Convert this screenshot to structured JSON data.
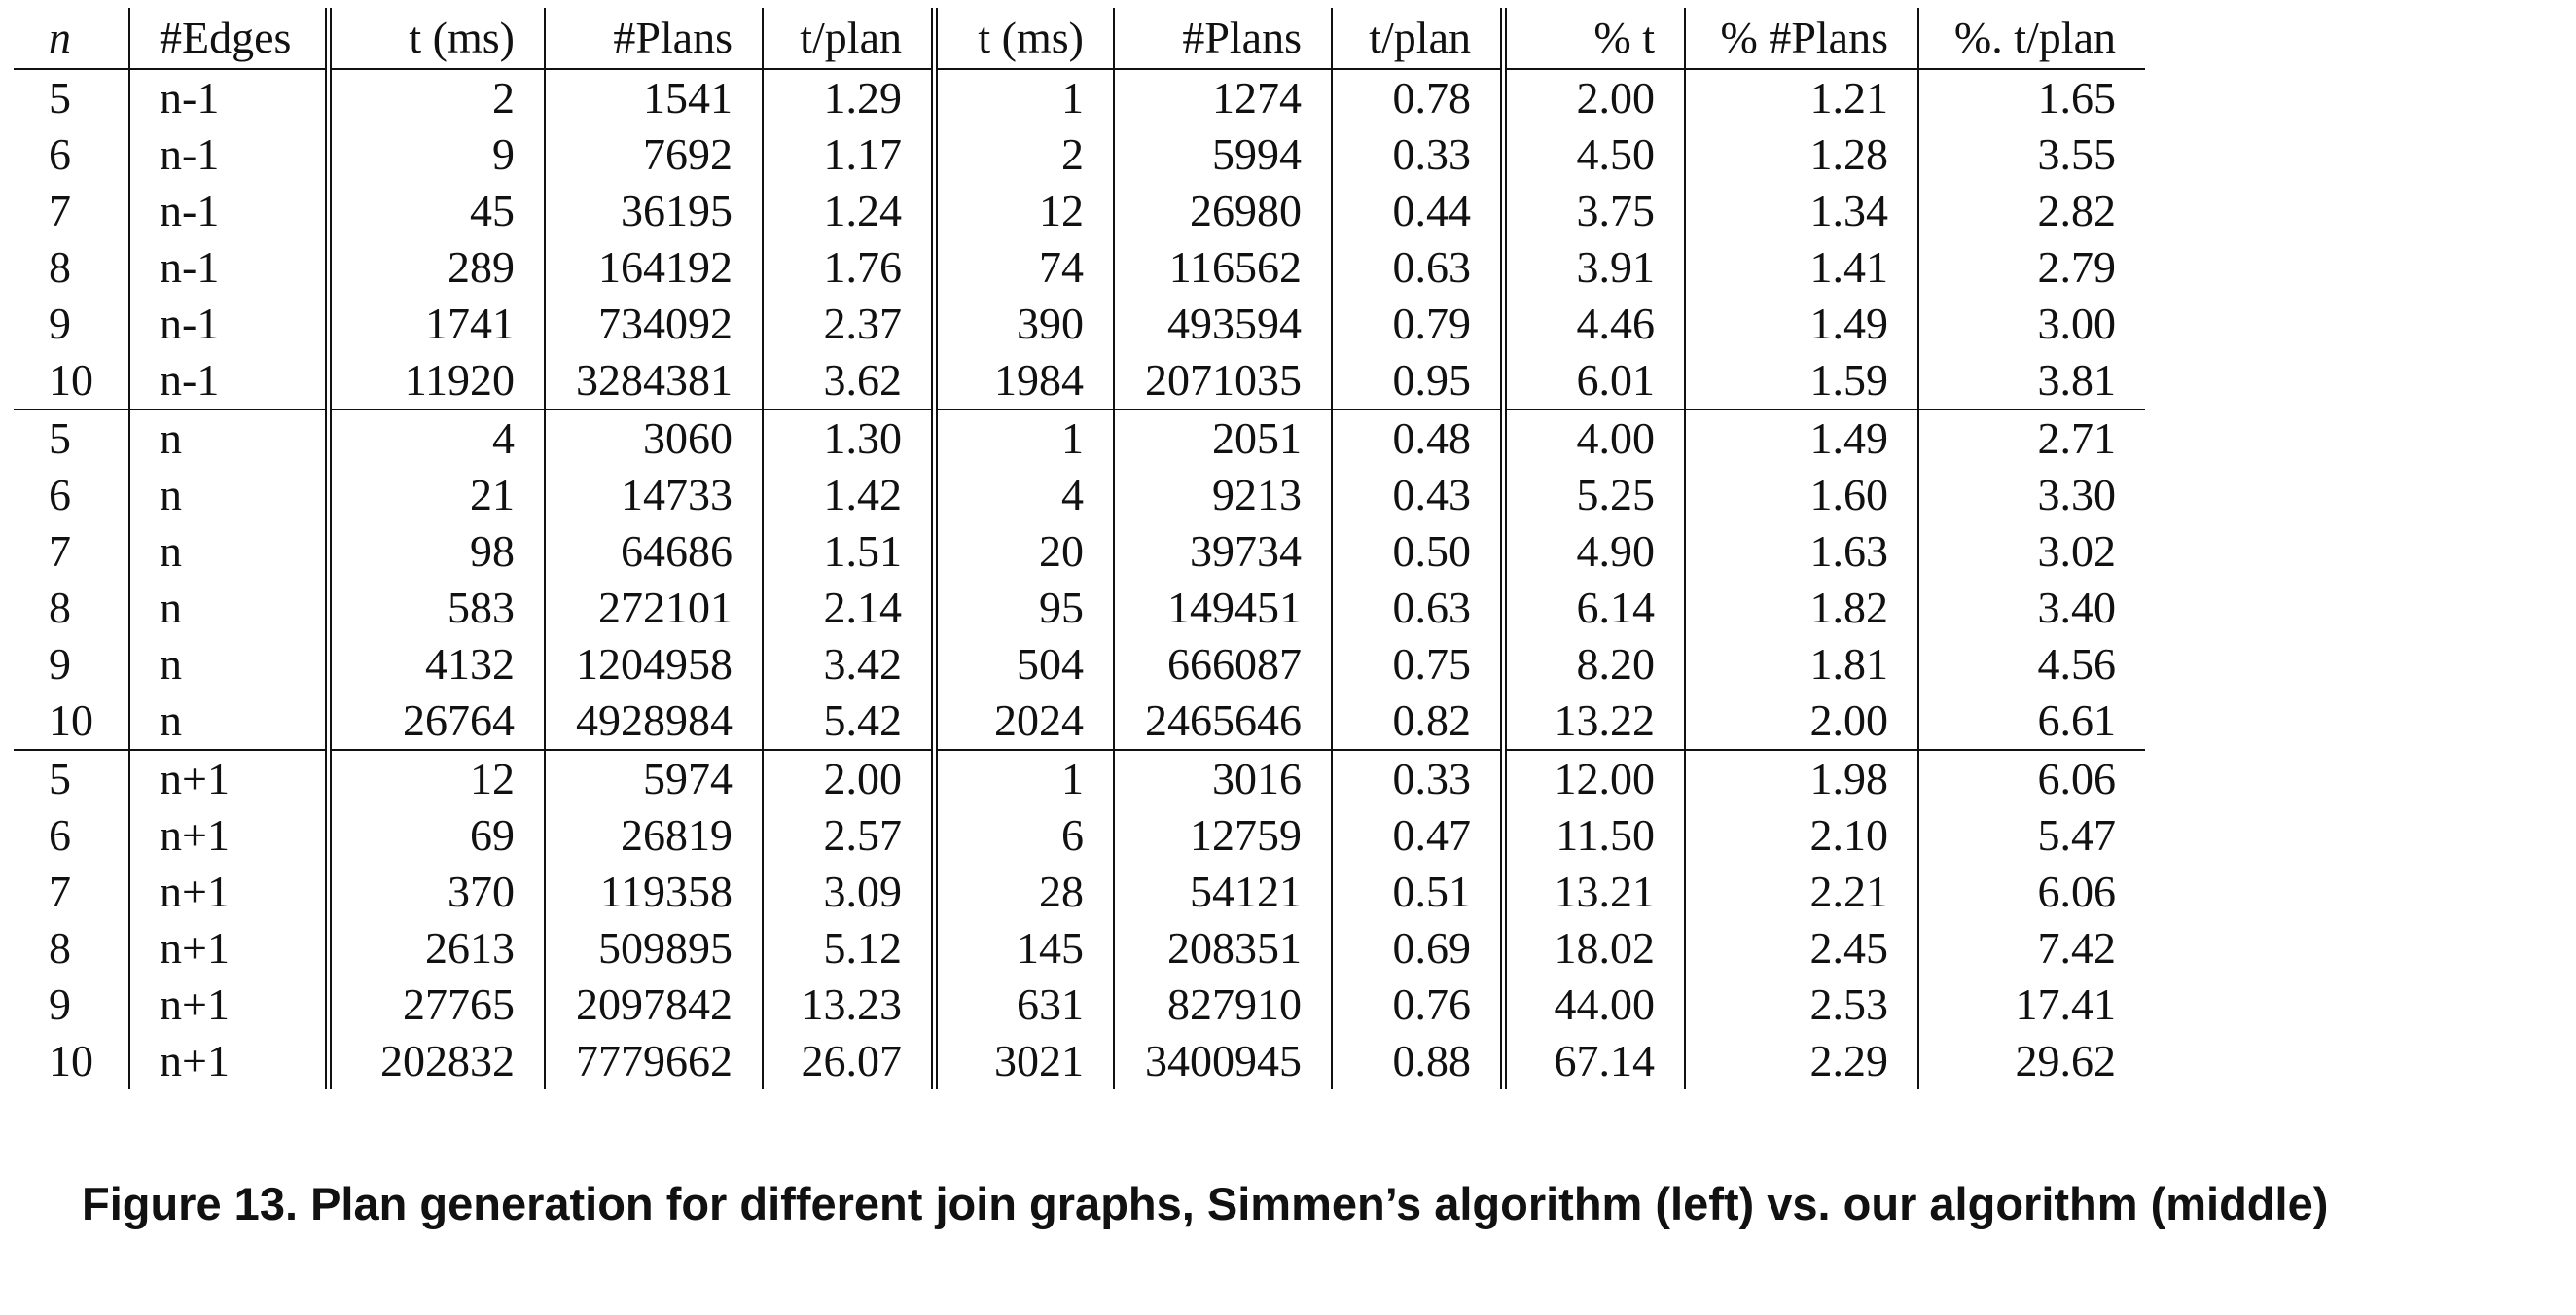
{
  "headers": {
    "n": "n",
    "edges": "#Edges",
    "t1": "t (ms)",
    "plans1": "#Plans",
    "tplan1": "t/plan",
    "t2": "t (ms)",
    "plans2": "#Plans",
    "tplan2": "t/plan",
    "pct_t": "% t",
    "pct_plans": "% #Plans",
    "pct_tplan": "%. t/plan"
  },
  "rows": [
    [
      "5",
      "n-1",
      "2",
      "1541",
      "1.29",
      "1",
      "1274",
      "0.78",
      "2.00",
      "1.21",
      "1.65"
    ],
    [
      "6",
      "n-1",
      "9",
      "7692",
      "1.17",
      "2",
      "5994",
      "0.33",
      "4.50",
      "1.28",
      "3.55"
    ],
    [
      "7",
      "n-1",
      "45",
      "36195",
      "1.24",
      "12",
      "26980",
      "0.44",
      "3.75",
      "1.34",
      "2.82"
    ],
    [
      "8",
      "n-1",
      "289",
      "164192",
      "1.76",
      "74",
      "116562",
      "0.63",
      "3.91",
      "1.41",
      "2.79"
    ],
    [
      "9",
      "n-1",
      "1741",
      "734092",
      "2.37",
      "390",
      "493594",
      "0.79",
      "4.46",
      "1.49",
      "3.00"
    ],
    [
      "10",
      "n-1",
      "11920",
      "3284381",
      "3.62",
      "1984",
      "2071035",
      "0.95",
      "6.01",
      "1.59",
      "3.81"
    ],
    [
      "5",
      "n",
      "4",
      "3060",
      "1.30",
      "1",
      "2051",
      "0.48",
      "4.00",
      "1.49",
      "2.71"
    ],
    [
      "6",
      "n",
      "21",
      "14733",
      "1.42",
      "4",
      "9213",
      "0.43",
      "5.25",
      "1.60",
      "3.30"
    ],
    [
      "7",
      "n",
      "98",
      "64686",
      "1.51",
      "20",
      "39734",
      "0.50",
      "4.90",
      "1.63",
      "3.02"
    ],
    [
      "8",
      "n",
      "583",
      "272101",
      "2.14",
      "95",
      "149451",
      "0.63",
      "6.14",
      "1.82",
      "3.40"
    ],
    [
      "9",
      "n",
      "4132",
      "1204958",
      "3.42",
      "504",
      "666087",
      "0.75",
      "8.20",
      "1.81",
      "4.56"
    ],
    [
      "10",
      "n",
      "26764",
      "4928984",
      "5.42",
      "2024",
      "2465646",
      "0.82",
      "13.22",
      "2.00",
      "6.61"
    ],
    [
      "5",
      "n+1",
      "12",
      "5974",
      "2.00",
      "1",
      "3016",
      "0.33",
      "12.00",
      "1.98",
      "6.06"
    ],
    [
      "6",
      "n+1",
      "69",
      "26819",
      "2.57",
      "6",
      "12759",
      "0.47",
      "11.50",
      "2.10",
      "5.47"
    ],
    [
      "7",
      "n+1",
      "370",
      "119358",
      "3.09",
      "28",
      "54121",
      "0.51",
      "13.21",
      "2.21",
      "6.06"
    ],
    [
      "8",
      "n+1",
      "2613",
      "509895",
      "5.12",
      "145",
      "208351",
      "0.69",
      "18.02",
      "2.45",
      "7.42"
    ],
    [
      "9",
      "n+1",
      "27765",
      "2097842",
      "13.23",
      "631",
      "827910",
      "0.76",
      "44.00",
      "2.53",
      "17.41"
    ],
    [
      "10",
      "n+1",
      "202832",
      "7779662",
      "26.07",
      "3021",
      "3400945",
      "0.88",
      "67.14",
      "2.29",
      "29.62"
    ]
  ],
  "caption": "Figure 13. Plan generation for different join graphs, Simmen’s algorithm (left) vs. our algorithm (middle)"
}
